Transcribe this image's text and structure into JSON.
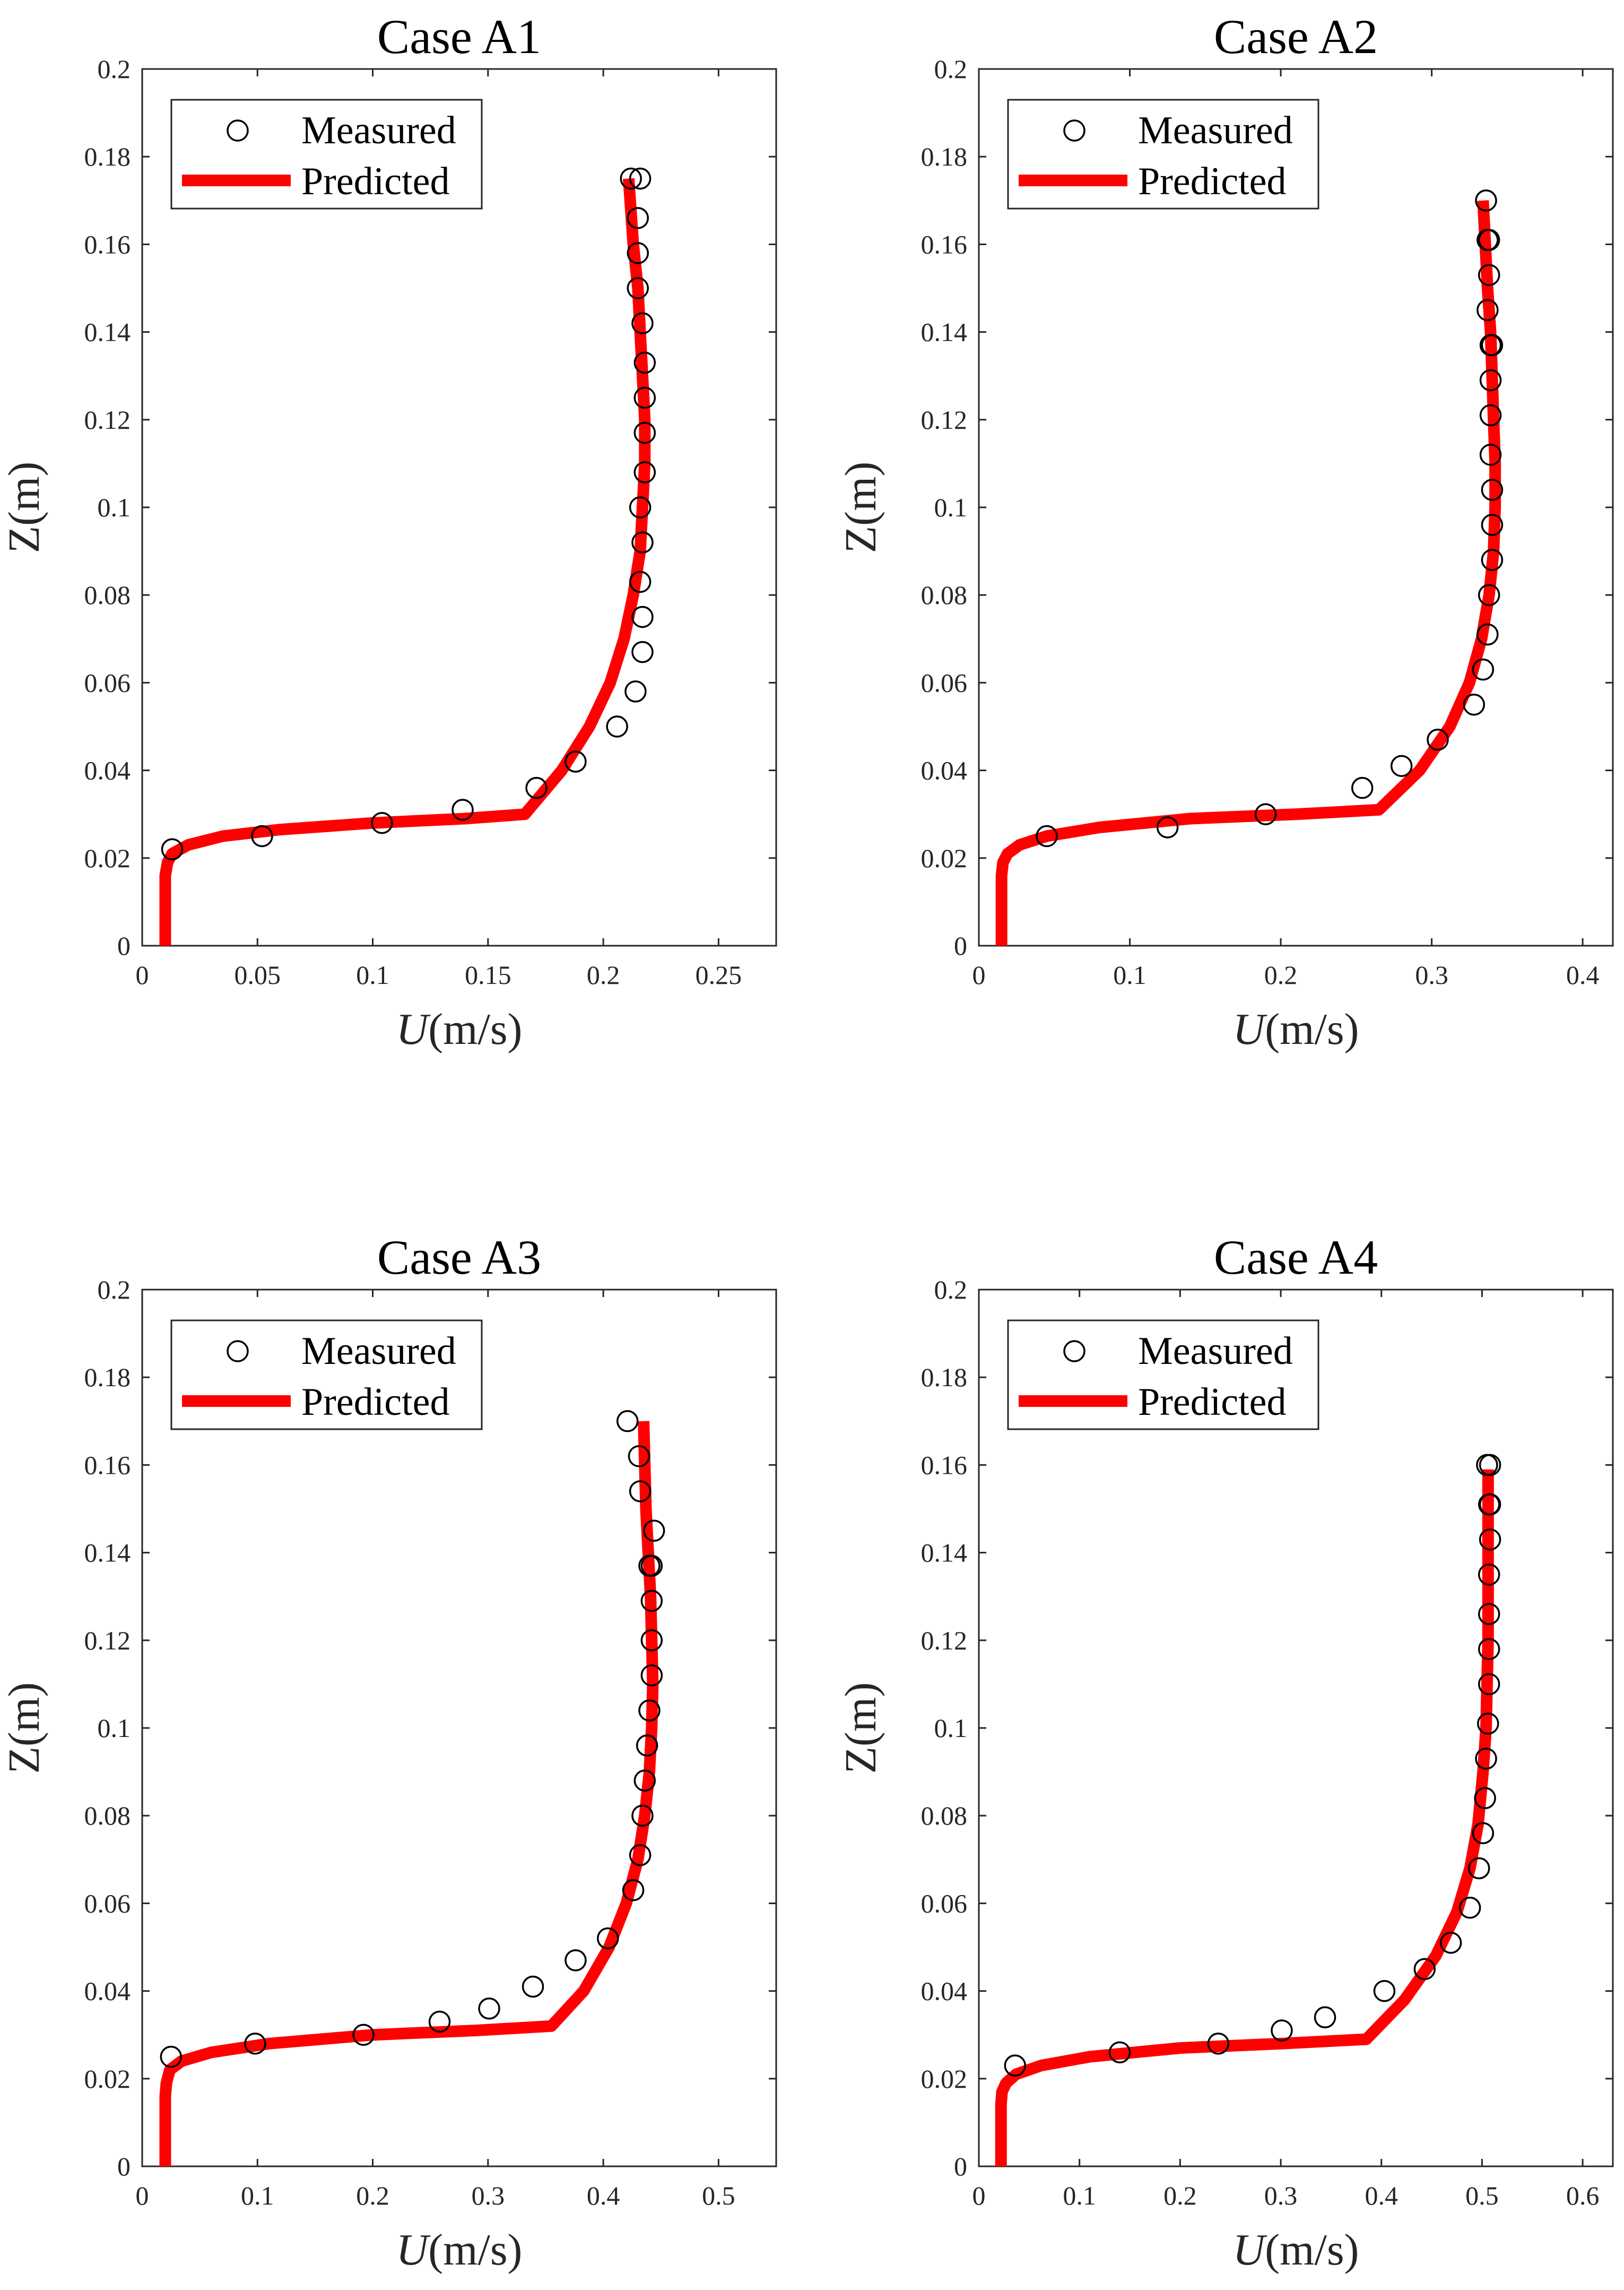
{
  "figure": {
    "colors": {
      "predicted": "#ff0000",
      "measured": "#000000",
      "axis": "#262626",
      "background": "#ffffff"
    }
  },
  "chart_data": [
    {
      "type": "line",
      "title": "Case A1",
      "xlabel_italic": "U",
      "xlabel_unit": "(m/s)",
      "ylabel": "Z(m)",
      "xlim": [
        0,
        0.275
      ],
      "ylim": [
        0,
        0.2
      ],
      "xticks": [
        0,
        0.05,
        0.1,
        0.15,
        0.2,
        0.25
      ],
      "xtick_labels": [
        "0",
        "0.05",
        "0.1",
        "0.15",
        "0.2",
        "0.25"
      ],
      "yticks": [
        0,
        0.02,
        0.04,
        0.06,
        0.08,
        0.1,
        0.12,
        0.14,
        0.16,
        0.18,
        0.2
      ],
      "ytick_labels": [
        "0",
        "0.02",
        "0.04",
        "0.06",
        "0.08",
        "0.1",
        "0.12",
        "0.14",
        "0.16",
        "0.18",
        "0.2"
      ],
      "legend": {
        "position": "top-left",
        "entries": [
          "Measured",
          "Predicted"
        ]
      },
      "series": [
        {
          "name": "Measured",
          "style": "marker",
          "x": [
            0.013,
            0.052,
            0.104,
            0.139,
            0.171,
            0.188,
            0.206,
            0.214,
            0.217,
            0.217,
            0.216,
            0.217,
            0.216,
            0.218,
            0.218,
            0.218,
            0.218,
            0.217,
            0.215,
            0.215,
            0.215,
            0.216,
            0.212
          ],
          "y": [
            0.022,
            0.025,
            0.028,
            0.031,
            0.036,
            0.042,
            0.05,
            0.058,
            0.067,
            0.075,
            0.083,
            0.092,
            0.1,
            0.108,
            0.117,
            0.125,
            0.133,
            0.142,
            0.15,
            0.158,
            0.166,
            0.175,
            0.175
          ]
        },
        {
          "name": "Predicted",
          "style": "line",
          "x": [
            0.01,
            0.01,
            0.01,
            0.011,
            0.013,
            0.02,
            0.035,
            0.06,
            0.1,
            0.14,
            0.166,
            0.182,
            0.194,
            0.203,
            0.209,
            0.213,
            0.216,
            0.217,
            0.218,
            0.218,
            0.217,
            0.216,
            0.215,
            0.213,
            0.211
          ],
          "y": [
            0.0,
            0.01,
            0.016,
            0.019,
            0.021,
            0.023,
            0.025,
            0.0265,
            0.028,
            0.029,
            0.03,
            0.04,
            0.05,
            0.06,
            0.07,
            0.08,
            0.09,
            0.1,
            0.11,
            0.12,
            0.13,
            0.14,
            0.15,
            0.16,
            0.175
          ]
        }
      ]
    },
    {
      "type": "line",
      "title": "Case A2",
      "xlabel_italic": "U",
      "xlabel_unit": "(m/s)",
      "ylabel": "Z(m)",
      "xlim": [
        0,
        0.42
      ],
      "ylim": [
        0,
        0.2
      ],
      "xticks": [
        0,
        0.1,
        0.2,
        0.3,
        0.4
      ],
      "xtick_labels": [
        "0",
        "0.1",
        "0.2",
        "0.3",
        "0.4"
      ],
      "yticks": [
        0,
        0.02,
        0.04,
        0.06,
        0.08,
        0.1,
        0.12,
        0.14,
        0.16,
        0.18,
        0.2
      ],
      "ytick_labels": [
        "0",
        "0.02",
        "0.04",
        "0.06",
        "0.08",
        "0.1",
        "0.12",
        "0.14",
        "0.16",
        "0.18",
        "0.2"
      ],
      "legend": {
        "position": "top-left",
        "entries": [
          "Measured",
          "Predicted"
        ]
      },
      "series": [
        {
          "name": "Measured",
          "style": "marker",
          "x": [
            0.045,
            0.125,
            0.19,
            0.254,
            0.28,
            0.304,
            0.328,
            0.334,
            0.337,
            0.338,
            0.34,
            0.34,
            0.34,
            0.339,
            0.339,
            0.339,
            0.34,
            0.339,
            0.337,
            0.338,
            0.338,
            0.337,
            0.336
          ],
          "y": [
            0.025,
            0.027,
            0.03,
            0.036,
            0.041,
            0.047,
            0.055,
            0.063,
            0.071,
            0.08,
            0.088,
            0.096,
            0.104,
            0.112,
            0.121,
            0.129,
            0.137,
            0.137,
            0.145,
            0.153,
            0.161,
            0.161,
            0.17
          ]
        },
        {
          "name": "Predicted",
          "style": "line",
          "x": [
            0.015,
            0.015,
            0.015,
            0.016,
            0.019,
            0.027,
            0.045,
            0.08,
            0.14,
            0.21,
            0.265,
            0.292,
            0.312,
            0.325,
            0.333,
            0.338,
            0.341,
            0.342,
            0.342,
            0.341,
            0.34,
            0.339,
            0.337,
            0.334
          ],
          "y": [
            0.0,
            0.01,
            0.016,
            0.019,
            0.021,
            0.023,
            0.025,
            0.027,
            0.029,
            0.03,
            0.031,
            0.04,
            0.05,
            0.06,
            0.07,
            0.08,
            0.09,
            0.1,
            0.11,
            0.12,
            0.13,
            0.14,
            0.15,
            0.17
          ]
        }
      ]
    },
    {
      "type": "line",
      "title": "Case A3",
      "xlabel_italic": "U",
      "xlabel_unit": "(m/s)",
      "ylabel": "Z(m)",
      "xlim": [
        0,
        0.55
      ],
      "ylim": [
        0,
        0.2
      ],
      "xticks": [
        0,
        0.1,
        0.2,
        0.3,
        0.4,
        0.5
      ],
      "xtick_labels": [
        "0",
        "0.1",
        "0.2",
        "0.3",
        "0.4",
        "0.5"
      ],
      "yticks": [
        0,
        0.02,
        0.04,
        0.06,
        0.08,
        0.1,
        0.12,
        0.14,
        0.16,
        0.18,
        0.2
      ],
      "ytick_labels": [
        "0",
        "0.02",
        "0.04",
        "0.06",
        "0.08",
        "0.1",
        "0.12",
        "0.14",
        "0.16",
        "0.18",
        "0.2"
      ],
      "legend": {
        "position": "top-left",
        "entries": [
          "Measured",
          "Predicted"
        ]
      },
      "series": [
        {
          "name": "Measured",
          "style": "marker",
          "x": [
            0.025,
            0.098,
            0.192,
            0.258,
            0.301,
            0.339,
            0.376,
            0.404,
            0.426,
            0.432,
            0.434,
            0.436,
            0.438,
            0.44,
            0.442,
            0.442,
            0.442,
            0.442,
            0.44,
            0.444,
            0.432,
            0.431,
            0.421
          ],
          "y": [
            0.025,
            0.028,
            0.03,
            0.033,
            0.036,
            0.041,
            0.047,
            0.052,
            0.063,
            0.071,
            0.08,
            0.088,
            0.096,
            0.104,
            0.112,
            0.12,
            0.129,
            0.137,
            0.137,
            0.145,
            0.154,
            0.162,
            0.17
          ]
        },
        {
          "name": "Predicted",
          "style": "line",
          "x": [
            0.02,
            0.02,
            0.02,
            0.021,
            0.024,
            0.034,
            0.06,
            0.11,
            0.2,
            0.29,
            0.355,
            0.383,
            0.405,
            0.42,
            0.43,
            0.436,
            0.44,
            0.442,
            0.443,
            0.442,
            0.441,
            0.439,
            0.437,
            0.435
          ],
          "y": [
            0.0,
            0.01,
            0.016,
            0.019,
            0.022,
            0.024,
            0.026,
            0.028,
            0.03,
            0.031,
            0.032,
            0.04,
            0.05,
            0.06,
            0.07,
            0.08,
            0.09,
            0.1,
            0.11,
            0.12,
            0.13,
            0.14,
            0.15,
            0.17
          ]
        }
      ]
    },
    {
      "type": "line",
      "title": "Case A4",
      "xlabel_italic": "U",
      "xlabel_unit": "(m/s)",
      "ylabel": "Z(m)",
      "xlim": [
        0,
        0.63
      ],
      "ylim": [
        0,
        0.2
      ],
      "xticks": [
        0,
        0.1,
        0.2,
        0.3,
        0.4,
        0.5,
        0.6
      ],
      "xtick_labels": [
        "0",
        "0.1",
        "0.2",
        "0.3",
        "0.4",
        "0.5",
        "0.6"
      ],
      "yticks": [
        0,
        0.02,
        0.04,
        0.06,
        0.08,
        0.1,
        0.12,
        0.14,
        0.16,
        0.18,
        0.2
      ],
      "ytick_labels": [
        "0",
        "0.02",
        "0.04",
        "0.06",
        "0.08",
        "0.1",
        "0.12",
        "0.14",
        "0.16",
        "0.18",
        "0.2"
      ],
      "legend": {
        "position": "top-left",
        "entries": [
          "Measured",
          "Predicted"
        ]
      },
      "series": [
        {
          "name": "Measured",
          "style": "marker",
          "x": [
            0.036,
            0.14,
            0.238,
            0.301,
            0.344,
            0.403,
            0.443,
            0.469,
            0.488,
            0.497,
            0.501,
            0.503,
            0.504,
            0.506,
            0.507,
            0.507,
            0.507,
            0.507,
            0.508,
            0.508,
            0.508,
            0.507,
            0.505
          ],
          "y": [
            0.023,
            0.026,
            0.028,
            0.031,
            0.034,
            0.04,
            0.045,
            0.051,
            0.059,
            0.068,
            0.076,
            0.084,
            0.093,
            0.101,
            0.11,
            0.118,
            0.126,
            0.135,
            0.143,
            0.151,
            0.16,
            0.151,
            0.16
          ]
        },
        {
          "name": "Predicted",
          "style": "line",
          "x": [
            0.022,
            0.022,
            0.022,
            0.023,
            0.027,
            0.037,
            0.062,
            0.11,
            0.2,
            0.3,
            0.385,
            0.423,
            0.454,
            0.475,
            0.488,
            0.496,
            0.501,
            0.504,
            0.505,
            0.506,
            0.506,
            0.506,
            0.506,
            0.506
          ],
          "y": [
            0.0,
            0.008,
            0.014,
            0.017,
            0.019,
            0.021,
            0.023,
            0.025,
            0.027,
            0.028,
            0.029,
            0.038,
            0.048,
            0.058,
            0.068,
            0.078,
            0.09,
            0.1,
            0.11,
            0.12,
            0.13,
            0.14,
            0.15,
            0.159
          ]
        }
      ]
    }
  ]
}
